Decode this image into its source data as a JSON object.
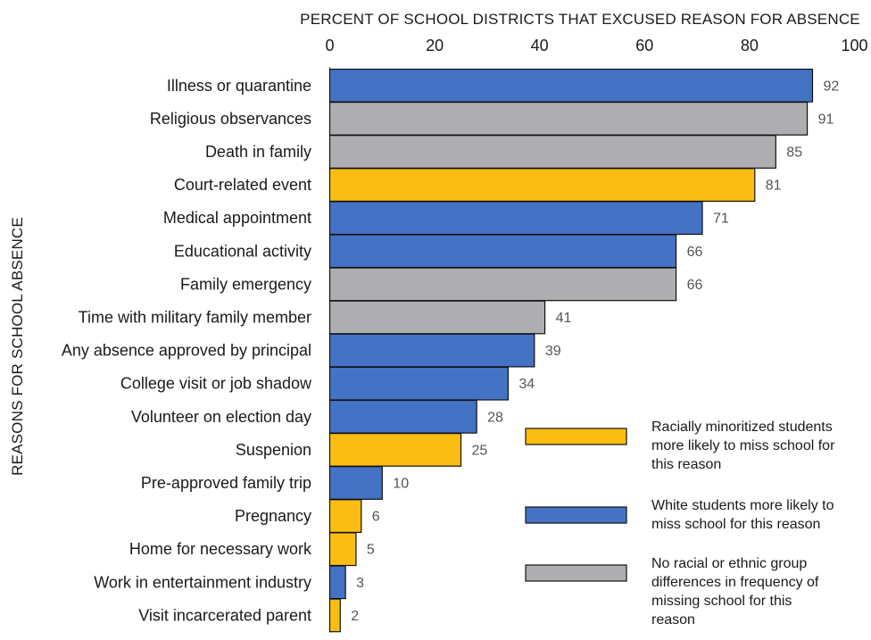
{
  "chart_data": {
    "type": "bar",
    "orientation": "horizontal",
    "title": "PERCENT OF SCHOOL DISTRICTS THAT EXCUSED REASON FOR ABSENCE",
    "ylabel": "REASONS FOR SCHOOL ABSENCE",
    "xlim": [
      0,
      100
    ],
    "x_ticks": [
      0,
      20,
      40,
      60,
      80,
      100
    ],
    "x_axis_position": "top",
    "grid": false,
    "legend_position": "bottom-right",
    "categories": [
      "Illness or quarantine",
      "Religious observances",
      "Death in family",
      "Court-related event",
      "Medical appointment",
      "Educational activity",
      "Family emergency",
      "Time with military family member",
      "Any absence approved by principal",
      "College visit or job shadow",
      "Volunteer on election day",
      "Suspenion",
      "Pre-approved family trip",
      "Pregnancy",
      "Home for necessary work",
      "Work in entertainment industry",
      "Visit incarcerated parent"
    ],
    "values": [
      92,
      91,
      85,
      81,
      71,
      66,
      66,
      41,
      39,
      34,
      28,
      25,
      10,
      6,
      5,
      3,
      2
    ],
    "groups": [
      "white",
      "none",
      "none",
      "minoritized",
      "white",
      "white",
      "none",
      "none",
      "white",
      "white",
      "white",
      "minoritized",
      "white",
      "minoritized",
      "minoritized",
      "white",
      "minoritized"
    ],
    "legend": [
      {
        "key": "minoritized",
        "lines": [
          "Racially minoritized students",
          "more likely to miss school for",
          "this reason"
        ],
        "color": "#FBBD13"
      },
      {
        "key": "white",
        "lines": [
          "White students more likely to",
          "miss school for this reason"
        ],
        "color": "#4472C4"
      },
      {
        "key": "none",
        "lines": [
          "No racial or ethnic group",
          "differences in frequency of",
          "missing school for this",
          "reason"
        ],
        "color": "#ADAEB1"
      }
    ]
  }
}
